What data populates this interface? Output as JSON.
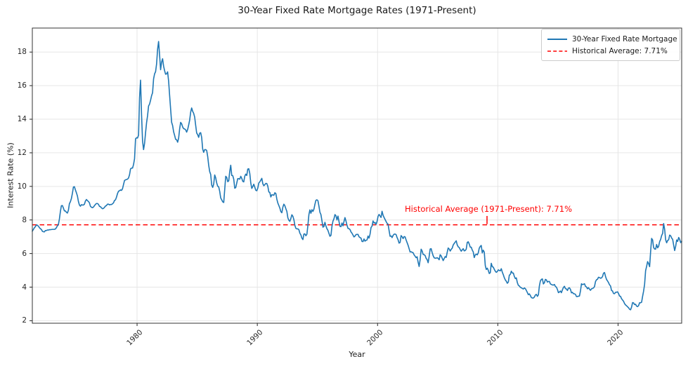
{
  "title": "30-Year Fixed Rate Mortgage Rates (1971-Present)",
  "axes": {
    "xlabel": "Year",
    "ylabel": "Interest Rate (%)"
  },
  "legend": {
    "items": [
      {
        "label": "30-Year Fixed Rate Mortgage",
        "color": "#1f77b4",
        "dash": false
      },
      {
        "label": "Historical Average: 7.71%",
        "color": "#ff0000",
        "dash": true
      }
    ]
  },
  "annotation": {
    "text": "Historical Average (1971-Present): 7.71%",
    "color": "#ff0000"
  },
  "colors": {
    "series": "#1f77b4",
    "average": "#ff0000",
    "grid": "#e6e6e6",
    "spine": "#333333",
    "tick": "#262626"
  },
  "chart_data": {
    "type": "line",
    "title": "30-Year Fixed Rate Mortgage Rates (1971-Present)",
    "xlabel": "Year",
    "ylabel": "Interest Rate (%)",
    "xlim": [
      1971.29,
      2025.29
    ],
    "ylim": [
      1.85,
      19.43
    ],
    "xticks": [
      1980,
      1990,
      2000,
      2010,
      2020
    ],
    "yticks": [
      2,
      4,
      6,
      8,
      10,
      12,
      14,
      16,
      18
    ],
    "grid": true,
    "legend_position": "upper right",
    "x_start_year": 1971.29,
    "x_step_years": 0.0833333,
    "average_line": {
      "value": 7.71,
      "label": "Historical Average: 7.71%",
      "color": "#ff0000",
      "dashed": true
    },
    "series": [
      {
        "name": "30-Year Fixed Rate Mortgage",
        "color": "#1f77b4",
        "values": [
          7.33,
          7.43,
          7.53,
          7.6,
          7.7,
          7.69,
          7.63,
          7.55,
          7.48,
          7.44,
          7.33,
          7.3,
          7.29,
          7.37,
          7.37,
          7.4,
          7.4,
          7.42,
          7.42,
          7.43,
          7.44,
          7.44,
          7.44,
          7.46,
          7.54,
          7.65,
          7.73,
          8.05,
          8.5,
          8.85,
          8.86,
          8.71,
          8.54,
          8.54,
          8.46,
          8.41,
          8.58,
          8.97,
          9.09,
          9.28,
          9.59,
          9.96,
          9.98,
          9.79,
          9.62,
          9.43,
          9.1,
          8.89,
          8.82,
          8.91,
          8.89,
          8.89,
          8.94,
          9.13,
          9.22,
          9.15,
          9.1,
          9.02,
          8.81,
          8.76,
          8.73,
          8.77,
          8.85,
          8.93,
          8.98,
          8.98,
          8.93,
          8.81,
          8.79,
          8.72,
          8.67,
          8.69,
          8.75,
          8.83,
          8.86,
          8.94,
          8.94,
          8.9,
          8.92,
          8.92,
          8.96,
          9.02,
          9.16,
          9.2,
          9.36,
          9.57,
          9.71,
          9.74,
          9.79,
          9.76,
          9.86,
          10.11,
          10.35,
          10.39,
          10.41,
          10.43,
          10.5,
          10.69,
          11.04,
          11.09,
          11.09,
          11.3,
          11.64,
          12.83,
          12.9,
          12.88,
          13.04,
          15.28,
          16.33,
          14.26,
          12.71,
          12.19,
          12.56,
          13.2,
          13.79,
          14.21,
          14.79,
          14.9,
          15.13,
          15.4,
          15.58,
          16.4,
          16.7,
          16.83,
          17.29,
          18.16,
          18.63,
          17.82,
          16.95,
          17.4,
          17.6,
          17.16,
          16.89,
          16.68,
          16.7,
          16.82,
          16.27,
          15.43,
          14.61,
          13.82,
          13.62,
          13.25,
          13.04,
          12.8,
          12.78,
          12.63,
          12.87,
          13.42,
          13.81,
          13.73,
          13.54,
          13.44,
          13.42,
          13.37,
          13.23,
          13.39,
          13.65,
          13.94,
          14.42,
          14.67,
          14.47,
          14.35,
          14.13,
          13.64,
          13.18,
          13.08,
          12.92,
          13.17,
          13.2,
          12.91,
          12.22,
          12.03,
          12.19,
          12.19,
          12.14,
          11.78,
          11.26,
          10.88,
          10.71,
          10.08,
          9.94,
          10.14,
          10.68,
          10.51,
          10.2,
          10.01,
          9.97,
          9.7,
          9.31,
          9.2,
          9.08,
          9.04,
          9.83,
          10.6,
          10.54,
          10.28,
          10.33,
          10.89,
          11.26,
          10.65,
          10.64,
          10.43,
          9.89,
          9.93,
          10.2,
          10.46,
          10.46,
          10.43,
          10.6,
          10.48,
          10.3,
          10.27,
          10.61,
          10.73,
          10.65,
          11.03,
          11.05,
          10.77,
          10.2,
          9.88,
          9.99,
          10.13,
          9.95,
          9.77,
          9.74,
          9.9,
          10.2,
          10.27,
          10.37,
          10.48,
          10.16,
          10.04,
          10.1,
          10.18,
          10.17,
          10.01,
          9.67,
          9.64,
          9.37,
          9.5,
          9.49,
          9.47,
          9.62,
          9.58,
          9.24,
          9.01,
          8.86,
          8.71,
          8.5,
          8.43,
          8.76,
          8.94,
          8.85,
          8.67,
          8.51,
          8.13,
          7.98,
          7.92,
          8.09,
          8.31,
          8.22,
          8.02,
          7.68,
          7.5,
          7.47,
          7.47,
          7.42,
          7.21,
          7.11,
          6.92,
          6.83,
          7.16,
          7.17,
          7.06,
          7.15,
          7.68,
          8.32,
          8.6,
          8.4,
          8.61,
          8.51,
          8.64,
          8.93,
          9.17,
          9.2,
          9.15,
          8.83,
          8.46,
          8.32,
          7.96,
          7.57,
          7.61,
          7.86,
          7.64,
          7.48,
          7.38,
          7.2,
          7.03,
          7.08,
          7.62,
          7.93,
          8.07,
          8.32,
          8.25,
          8.0,
          8.23,
          7.92,
          7.62,
          7.6,
          7.82,
          7.65,
          7.9,
          8.14,
          7.94,
          7.69,
          7.5,
          7.48,
          7.43,
          7.29,
          7.21,
          7.1,
          6.99,
          7.04,
          7.13,
          7.14,
          7.14,
          7.0,
          6.95,
          6.92,
          6.72,
          6.71,
          6.87,
          6.74,
          6.79,
          6.81,
          7.04,
          6.92,
          7.15,
          7.55,
          7.63,
          7.94,
          7.82,
          7.85,
          7.74,
          7.91,
          8.21,
          8.33,
          8.24,
          8.15,
          8.52,
          8.29,
          8.15,
          8.03,
          7.91,
          7.8,
          7.75,
          7.38,
          7.03,
          7.05,
          6.95,
          7.08,
          7.15,
          7.16,
          7.13,
          6.95,
          6.82,
          6.62,
          6.66,
          7.07,
          7.0,
          6.89,
          7.01,
          6.99,
          6.81,
          6.65,
          6.49,
          6.29,
          6.09,
          6.11,
          6.07,
          6.05,
          5.92,
          5.84,
          5.75,
          5.81,
          5.48,
          5.23,
          5.63,
          6.26,
          6.15,
          5.95,
          5.93,
          5.88,
          5.71,
          5.64,
          5.45,
          5.83,
          6.27,
          6.29,
          6.06,
          5.87,
          5.75,
          5.72,
          5.73,
          5.75,
          5.71,
          5.63,
          5.93,
          5.86,
          5.72,
          5.58,
          5.7,
          5.82,
          5.77,
          6.07,
          6.33,
          6.27,
          6.15,
          6.25,
          6.32,
          6.51,
          6.6,
          6.68,
          6.76,
          6.52,
          6.4,
          6.36,
          6.24,
          6.14,
          6.22,
          6.29,
          6.16,
          6.18,
          6.26,
          6.66,
          6.7,
          6.57,
          6.38,
          6.38,
          6.21,
          6.1,
          5.76,
          5.92,
          5.97,
          5.92,
          6.04,
          6.32,
          6.43,
          6.48,
          6.04,
          6.2,
          6.09,
          5.29,
          5.05,
          5.13,
          5.0,
          4.81,
          4.86,
          5.42,
          5.22,
          5.19,
          5.06,
          4.95,
          4.88,
          4.93,
          5.03,
          4.99,
          4.97,
          5.1,
          4.89,
          4.74,
          4.56,
          4.43,
          4.35,
          4.23,
          4.3,
          4.71,
          4.76,
          4.95,
          4.84,
          4.84,
          4.64,
          4.51,
          4.55,
          4.27,
          4.11,
          4.07,
          3.99,
          3.96,
          3.92,
          3.89,
          3.95,
          3.91,
          3.8,
          3.68,
          3.55,
          3.6,
          3.5,
          3.38,
          3.35,
          3.35,
          3.41,
          3.53,
          3.57,
          3.45,
          3.54,
          4.07,
          4.37,
          4.46,
          4.49,
          4.19,
          4.26,
          4.46,
          4.43,
          4.3,
          4.34,
          4.34,
          4.19,
          4.16,
          4.13,
          4.12,
          4.16,
          4.04,
          4.0,
          3.86,
          3.67,
          3.71,
          3.77,
          3.67,
          3.84,
          3.98,
          4.05,
          3.91,
          3.89,
          3.8,
          3.94,
          3.96,
          3.87,
          3.66,
          3.69,
          3.61,
          3.6,
          3.57,
          3.44,
          3.44,
          3.46,
          3.47,
          3.77,
          4.2,
          4.15,
          4.17,
          4.2,
          4.05,
          4.01,
          3.9,
          3.97,
          3.88,
          3.81,
          3.9,
          3.92,
          3.95,
          4.03,
          4.33,
          4.44,
          4.47,
          4.59,
          4.57,
          4.53,
          4.55,
          4.63,
          4.83,
          4.87,
          4.64,
          4.46,
          4.37,
          4.27,
          4.14,
          4.07,
          3.8,
          3.77,
          3.62,
          3.61,
          3.69,
          3.7,
          3.72,
          3.62,
          3.47,
          3.45,
          3.31,
          3.23,
          3.16,
          3.02,
          2.94,
          2.89,
          2.83,
          2.77,
          2.68,
          2.65,
          2.81,
          3.08,
          3.06,
          2.96,
          2.98,
          2.87,
          2.84,
          2.9,
          3.07,
          3.07,
          3.1,
          3.45,
          3.76,
          4.17,
          4.98,
          5.23,
          5.52,
          5.41,
          5.22,
          6.11,
          6.9,
          6.81,
          6.36,
          6.27,
          6.26,
          6.54,
          6.34,
          6.43,
          6.71,
          6.84,
          7.07,
          7.2,
          7.79,
          7.44,
          6.82,
          6.64,
          6.78,
          6.82,
          7.1,
          7.06,
          6.92,
          6.85,
          6.5,
          6.18,
          6.43,
          6.81,
          6.72,
          6.96,
          6.84,
          6.65,
          6.73
        ]
      }
    ],
    "annotation": {
      "text": "Historical Average (1971-Present): 7.71%",
      "color": "#ff0000"
    }
  }
}
